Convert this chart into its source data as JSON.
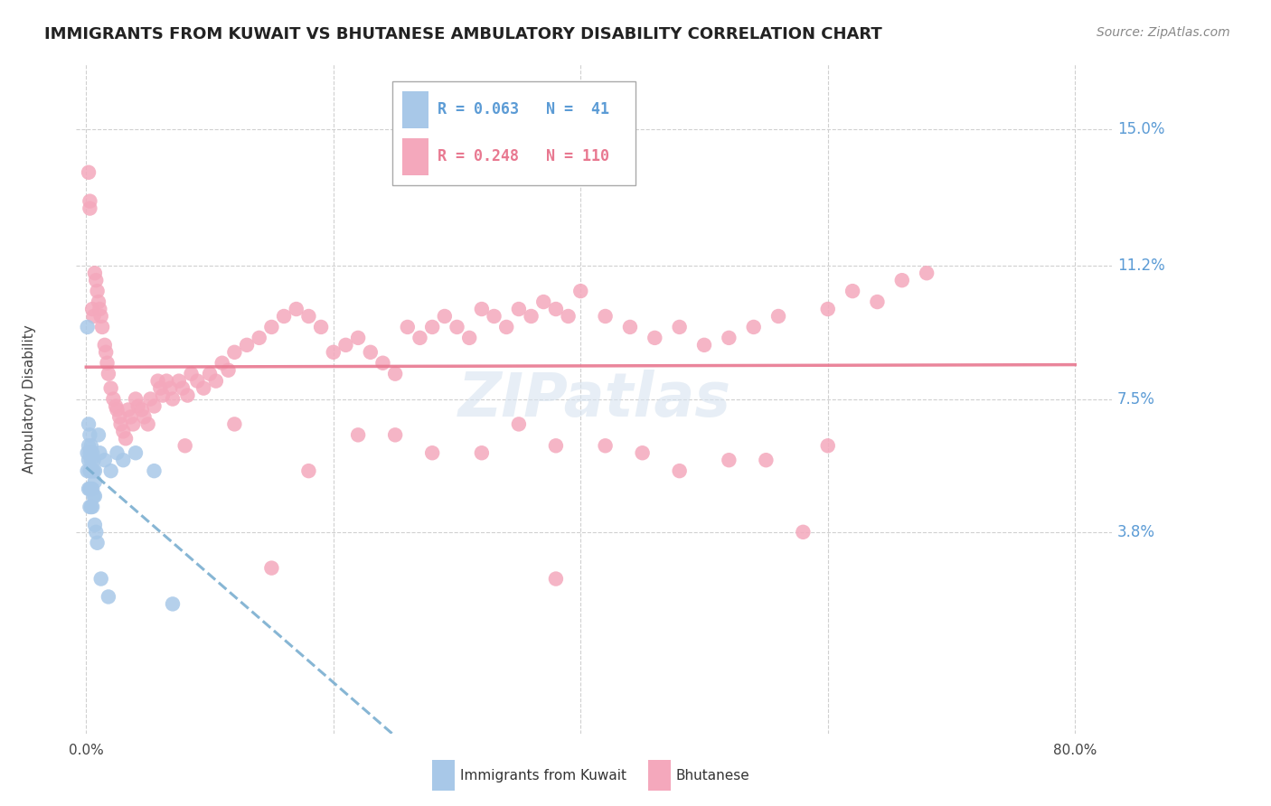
{
  "title": "IMMIGRANTS FROM KUWAIT VS BHUTANESE AMBULATORY DISABILITY CORRELATION CHART",
  "source": "Source: ZipAtlas.com",
  "ylabel": "Ambulatory Disability",
  "ytick_vals": [
    0.038,
    0.075,
    0.112,
    0.15
  ],
  "ytick_labels": [
    "3.8%",
    "7.5%",
    "11.2%",
    "15.0%"
  ],
  "xtick_vals": [
    0.0,
    0.2,
    0.4,
    0.6,
    0.8
  ],
  "xlim": [
    -0.008,
    0.83
  ],
  "ylim": [
    -0.018,
    0.168
  ],
  "kuwait_R": 0.063,
  "kuwait_N": 41,
  "bhutan_R": 0.248,
  "bhutan_N": 110,
  "kuwait_color": "#a8c8e8",
  "bhutan_color": "#f4a8bc",
  "kuwait_line_color": "#7aaed0",
  "bhutan_line_color": "#e87890",
  "watermark": "ZIPatlas",
  "watermark_color": "#d8e4f0",
  "grid_color": "#d0d0d0",
  "right_label_color": "#5b9bd5",
  "title_fontsize": 13,
  "source_fontsize": 10,
  "kuwait_x": [
    0.001,
    0.001,
    0.001,
    0.002,
    0.002,
    0.002,
    0.002,
    0.003,
    0.003,
    0.003,
    0.003,
    0.003,
    0.004,
    0.004,
    0.004,
    0.004,
    0.004,
    0.005,
    0.005,
    0.005,
    0.005,
    0.006,
    0.006,
    0.006,
    0.007,
    0.007,
    0.007,
    0.007,
    0.008,
    0.009,
    0.01,
    0.011,
    0.012,
    0.015,
    0.018,
    0.02,
    0.025,
    0.03,
    0.04,
    0.055,
    0.07
  ],
  "kuwait_y": [
    0.095,
    0.06,
    0.055,
    0.068,
    0.062,
    0.058,
    0.05,
    0.065,
    0.06,
    0.055,
    0.05,
    0.045,
    0.062,
    0.058,
    0.055,
    0.05,
    0.045,
    0.06,
    0.055,
    0.05,
    0.045,
    0.058,
    0.055,
    0.048,
    0.055,
    0.052,
    0.048,
    0.04,
    0.038,
    0.035,
    0.065,
    0.06,
    0.025,
    0.058,
    0.02,
    0.055,
    0.06,
    0.058,
    0.06,
    0.055,
    0.018
  ],
  "bhutan_x": [
    0.002,
    0.003,
    0.005,
    0.006,
    0.007,
    0.008,
    0.009,
    0.01,
    0.011,
    0.012,
    0.013,
    0.015,
    0.016,
    0.017,
    0.018,
    0.02,
    0.022,
    0.024,
    0.025,
    0.027,
    0.028,
    0.03,
    0.032,
    0.034,
    0.036,
    0.038,
    0.04,
    0.042,
    0.045,
    0.047,
    0.05,
    0.052,
    0.055,
    0.058,
    0.06,
    0.062,
    0.065,
    0.068,
    0.07,
    0.075,
    0.078,
    0.082,
    0.085,
    0.09,
    0.095,
    0.1,
    0.105,
    0.11,
    0.115,
    0.12,
    0.13,
    0.14,
    0.15,
    0.16,
    0.17,
    0.18,
    0.19,
    0.2,
    0.21,
    0.22,
    0.23,
    0.24,
    0.25,
    0.26,
    0.27,
    0.28,
    0.29,
    0.3,
    0.31,
    0.32,
    0.33,
    0.34,
    0.35,
    0.36,
    0.37,
    0.38,
    0.39,
    0.4,
    0.42,
    0.44,
    0.46,
    0.48,
    0.5,
    0.52,
    0.54,
    0.56,
    0.58,
    0.6,
    0.62,
    0.64,
    0.66,
    0.68,
    0.003,
    0.15,
    0.25,
    0.35,
    0.45,
    0.55,
    0.48,
    0.38,
    0.28,
    0.18,
    0.08,
    0.32,
    0.22,
    0.12,
    0.42,
    0.52,
    0.6,
    0.38
  ],
  "bhutan_y": [
    0.138,
    0.128,
    0.1,
    0.098,
    0.11,
    0.108,
    0.105,
    0.102,
    0.1,
    0.098,
    0.095,
    0.09,
    0.088,
    0.085,
    0.082,
    0.078,
    0.075,
    0.073,
    0.072,
    0.07,
    0.068,
    0.066,
    0.064,
    0.072,
    0.07,
    0.068,
    0.075,
    0.073,
    0.072,
    0.07,
    0.068,
    0.075,
    0.073,
    0.08,
    0.078,
    0.076,
    0.08,
    0.078,
    0.075,
    0.08,
    0.078,
    0.076,
    0.082,
    0.08,
    0.078,
    0.082,
    0.08,
    0.085,
    0.083,
    0.088,
    0.09,
    0.092,
    0.095,
    0.098,
    0.1,
    0.098,
    0.095,
    0.088,
    0.09,
    0.092,
    0.088,
    0.085,
    0.082,
    0.095,
    0.092,
    0.095,
    0.098,
    0.095,
    0.092,
    0.1,
    0.098,
    0.095,
    0.1,
    0.098,
    0.102,
    0.1,
    0.098,
    0.105,
    0.098,
    0.095,
    0.092,
    0.095,
    0.09,
    0.092,
    0.095,
    0.098,
    0.038,
    0.1,
    0.105,
    0.102,
    0.108,
    0.11,
    0.13,
    0.028,
    0.065,
    0.068,
    0.06,
    0.058,
    0.055,
    0.062,
    0.06,
    0.055,
    0.062,
    0.06,
    0.065,
    0.068,
    0.062,
    0.058,
    0.062,
    0.025
  ]
}
